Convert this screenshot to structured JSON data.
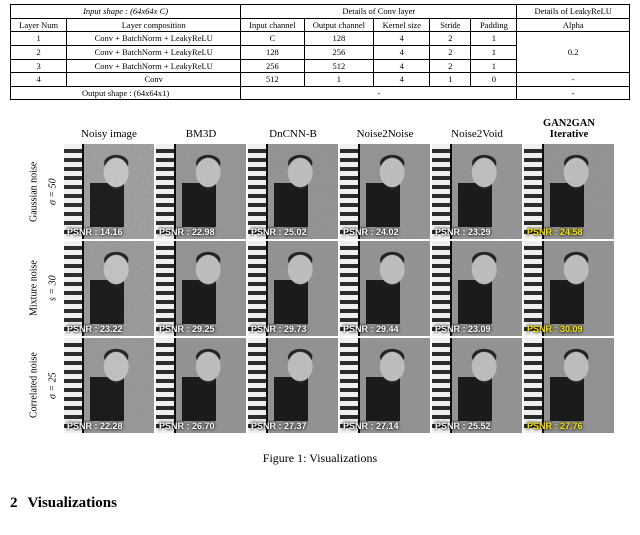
{
  "table": {
    "header_top_input": "Input shape : (64x64x C)",
    "header_top_conv": "Details of Conv layer",
    "header_top_leaky": "Details of LeakyReLU",
    "cols": {
      "layer_num": "Layer Num",
      "layer_comp": "Layer composition",
      "in_ch": "Input channel",
      "out_ch": "Output channel",
      "ksize": "Kernel size",
      "stride": "Stride",
      "pad": "Padding",
      "alpha": "Alpha"
    },
    "rows": [
      {
        "n": "1",
        "comp": "Conv + BatchNorm + LeakyReLU",
        "in": "C",
        "out": "128",
        "k": "4",
        "s": "2",
        "p": "1"
      },
      {
        "n": "2",
        "comp": "Conv + BatchNorm + LeakyReLU",
        "in": "128",
        "out": "256",
        "k": "4",
        "s": "2",
        "p": "1"
      },
      {
        "n": "3",
        "comp": "Conv + BatchNorm + LeakyReLU",
        "in": "256",
        "out": "512",
        "k": "4",
        "s": "2",
        "p": "1"
      },
      {
        "n": "4",
        "comp": "Conv",
        "in": "512",
        "out": "1",
        "k": "4",
        "s": "1",
        "p": "0"
      }
    ],
    "alpha_val": "0.2",
    "alpha_dash": "-",
    "output_row": "Output shape : (64x64x1)",
    "dash": "-"
  },
  "figure": {
    "columns": [
      "Noisy image",
      "BM3D",
      "DnCNN-B",
      "Noise2Noise",
      "Noise2Void",
      "GAN2GAN\nIterative"
    ],
    "row_outer_labels": [
      "Gaussian noise",
      "Mixture noise",
      "Correlated noise"
    ],
    "row_inner_labels": [
      "σ = 50",
      "s = 30",
      "σ = 25"
    ],
    "noise_opacity_by_col": [
      0.55,
      0.18,
      0.1,
      0.12,
      0.14,
      0.1
    ],
    "noise_scale_by_row": [
      1.0,
      0.65,
      0.5
    ],
    "psnr_white": "#ffffff",
    "psnr_yellow": "#ffe900",
    "cells": [
      [
        {
          "psnr": "PSNR : 14.16",
          "c": "#ffffff"
        },
        {
          "psnr": "PSNR : 22.98",
          "c": "#ffffff"
        },
        {
          "psnr": "PSNR : 25.02",
          "c": "#ffffff"
        },
        {
          "psnr": "PSNR : 24.02",
          "c": "#ffffff"
        },
        {
          "psnr": "PSNR : 23.29",
          "c": "#ffffff"
        },
        {
          "psnr": "PSNR : 24.58",
          "c": "#ffe900"
        }
      ],
      [
        {
          "psnr": "PSNR : 23.22",
          "c": "#ffffff"
        },
        {
          "psnr": "PSNR : 29.25",
          "c": "#ffffff"
        },
        {
          "psnr": "PSNR : 29.73",
          "c": "#ffffff"
        },
        {
          "psnr": "PSNR : 29.44",
          "c": "#ffffff"
        },
        {
          "psnr": "PSNR : 23.09",
          "c": "#ffffff"
        },
        {
          "psnr": "PSNR : 30.09",
          "c": "#ffe900"
        }
      ],
      [
        {
          "psnr": "PSNR : 22.28",
          "c": "#ffffff"
        },
        {
          "psnr": "PSNR : 26.70",
          "c": "#ffffff"
        },
        {
          "psnr": "PSNR : 27.37",
          "c": "#ffffff"
        },
        {
          "psnr": "PSNR : 27.14",
          "c": "#ffffff"
        },
        {
          "psnr": "PSNR : 25.52",
          "c": "#ffffff"
        },
        {
          "psnr": "PSNR : 27.76",
          "c": "#ffe900"
        }
      ]
    ],
    "caption": "Figure 1: Visualizations"
  },
  "section": {
    "num": "2",
    "title": "Visualizations"
  }
}
